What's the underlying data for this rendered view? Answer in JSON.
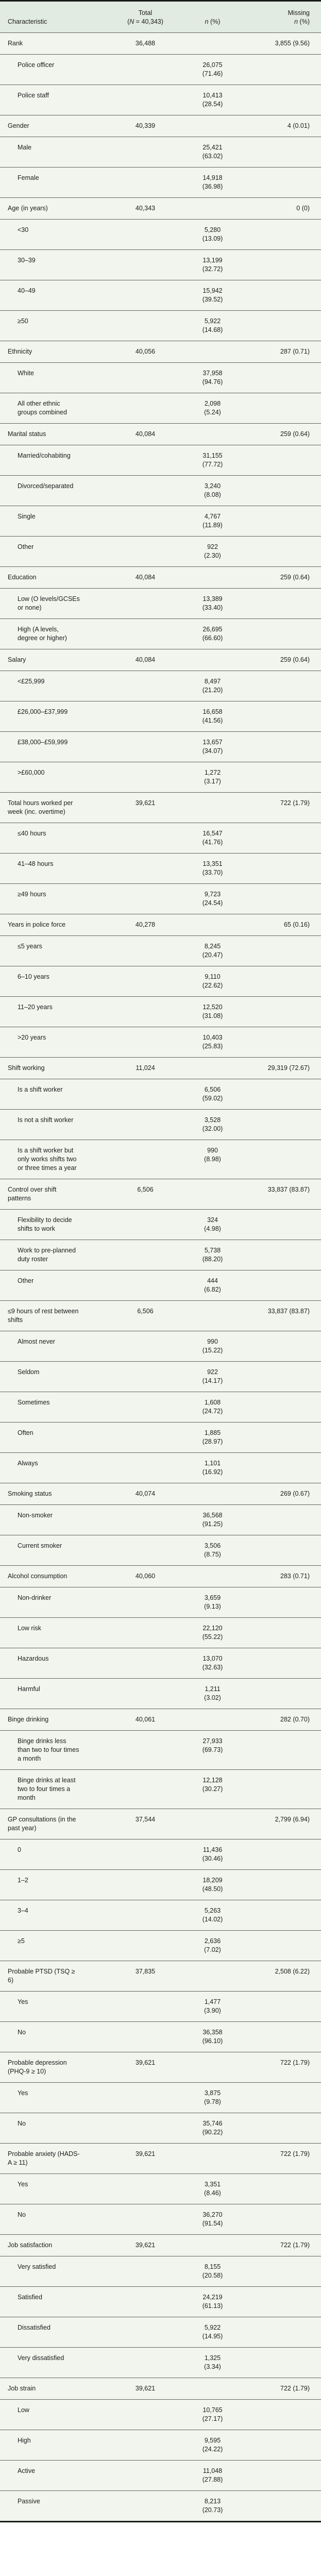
{
  "table": {
    "colors": {
      "header_bg": "#e2ebe1",
      "body_bg": "#f2f5ee",
      "row_line": "#60655f",
      "outer_border": "#181c18",
      "text": "#1b1b1b"
    },
    "header": {
      "characteristic": "Characteristic",
      "total": {
        "line1": "Total",
        "open": "(",
        "n_symbol": "N",
        "rest": " = 40,343)"
      },
      "n_col": {
        "n_symbol": "n",
        "rest": " (%)"
      },
      "missing": {
        "line1": "Missing",
        "n_symbol": "n",
        "rest": " (%)"
      }
    },
    "rows": [
      {
        "label": "Rank",
        "level": 0,
        "total": "36,488",
        "missing": "3,855 (9.56)"
      },
      {
        "label": "Police officer",
        "level": 1,
        "n": "26,075",
        "pct": "(71.46)"
      },
      {
        "label": "Police staff",
        "level": 1,
        "n": "10,413",
        "pct": "(28.54)"
      },
      {
        "label": "Gender",
        "level": 0,
        "total": "40,339",
        "missing": "4 (0.01)"
      },
      {
        "label": "Male",
        "level": 1,
        "n": "25,421",
        "pct": "(63.02)"
      },
      {
        "label": "Female",
        "level": 1,
        "n": "14,918",
        "pct": "(36.98)"
      },
      {
        "label": "Age (in years)",
        "level": 0,
        "total": "40,343",
        "missing": "0 (0)"
      },
      {
        "label": "<30",
        "level": 1,
        "n": "5,280",
        "pct": "(13.09)"
      },
      {
        "label": "30–39",
        "level": 1,
        "n": "13,199",
        "pct": "(32.72)"
      },
      {
        "label": "40–49",
        "level": 1,
        "n": "15,942",
        "pct": "(39.52)"
      },
      {
        "label": "≥50",
        "level": 1,
        "n": "5,922",
        "pct": "(14.68)"
      },
      {
        "label": "Ethnicity",
        "level": 0,
        "total": "40,056",
        "missing": "287 (0.71)"
      },
      {
        "label": "White",
        "level": 1,
        "n": "37,958",
        "pct": "(94.76)"
      },
      {
        "label": "All other ethnic groups combined",
        "level": 1,
        "n": "2,098",
        "pct": "(5.24)"
      },
      {
        "label": "Marital status",
        "level": 0,
        "total": "40,084",
        "missing": "259 (0.64)"
      },
      {
        "label": "Married/cohabiting",
        "level": 1,
        "n": "31,155",
        "pct": "(77.72)"
      },
      {
        "label": "Divorced/separated",
        "level": 1,
        "n": "3,240",
        "pct": "(8.08)"
      },
      {
        "label": "Single",
        "level": 1,
        "n": "4,767",
        "pct": "(11.89)"
      },
      {
        "label": "Other",
        "level": 1,
        "n": "922",
        "pct": "(2.30)"
      },
      {
        "label": "Education",
        "level": 0,
        "total": "40,084",
        "missing": "259 (0.64)"
      },
      {
        "label": "Low (O levels/GCSEs or none)",
        "level": 1,
        "n": "13,389",
        "pct": "(33.40)"
      },
      {
        "label": "High (A levels, degree or higher)",
        "level": 1,
        "n": "26,695",
        "pct": "(66.60)"
      },
      {
        "label": "Salary",
        "level": 0,
        "total": "40,084",
        "missing": "259 (0.64)"
      },
      {
        "label": "<£25,999",
        "level": 1,
        "n": "8,497",
        "pct": "(21.20)"
      },
      {
        "label": "£26,000–£37,999",
        "level": 1,
        "n": "16,658",
        "pct": "(41.56)"
      },
      {
        "label": "£38,000–£59,999",
        "level": 1,
        "n": "13,657",
        "pct": "(34.07)"
      },
      {
        "label": ">£60,000",
        "level": 1,
        "n": "1,272",
        "pct": "(3.17)"
      },
      {
        "label": "Total hours worked per week (inc. overtime)",
        "level": 0,
        "total": "39,621",
        "missing": "722 (1.79)"
      },
      {
        "label": "≤40 hours",
        "level": 1,
        "n": "16,547",
        "pct": "(41.76)"
      },
      {
        "label": "41–48 hours",
        "level": 1,
        "n": "13,351",
        "pct": "(33.70)"
      },
      {
        "label": "≥49 hours",
        "level": 1,
        "n": "9,723",
        "pct": "(24.54)"
      },
      {
        "label": "Years in police force",
        "level": 0,
        "total": "40,278",
        "missing": "65 (0.16)"
      },
      {
        "label": "≤5 years",
        "level": 1,
        "n": "8,245",
        "pct": "(20.47)"
      },
      {
        "label": "6–10 years",
        "level": 1,
        "n": "9,110",
        "pct": "(22.62)"
      },
      {
        "label": "11–20 years",
        "level": 1,
        "n": "12,520",
        "pct": "(31.08)"
      },
      {
        "label": ">20 years",
        "level": 1,
        "n": "10,403",
        "pct": "(25.83)"
      },
      {
        "label": "Shift working",
        "level": 0,
        "total": "11,024",
        "missing": "29,319 (72.67)"
      },
      {
        "label": "Is a shift worker",
        "level": 1,
        "n": "6,506",
        "pct": "(59.02)"
      },
      {
        "label": "Is not a shift worker",
        "level": 1,
        "n": "3,528",
        "pct": "(32.00)"
      },
      {
        "label": "Is a shift worker but only works shifts two or three times a year",
        "level": 1,
        "n": "990",
        "pct": "(8.98)"
      },
      {
        "label": "Control over shift patterns",
        "level": 0,
        "total": "6,506",
        "missing": "33,837 (83.87)"
      },
      {
        "label": "Flexibility to decide shifts to work",
        "level": 1,
        "n": "324",
        "pct": "(4.98)"
      },
      {
        "label": "Work to pre-planned duty roster",
        "level": 1,
        "n": "5,738",
        "pct": "(88.20)"
      },
      {
        "label": "Other",
        "level": 1,
        "n": "444",
        "pct": "(6.82)"
      },
      {
        "label": "≤9 hours of rest between shifts",
        "level": 0,
        "total": "6,506",
        "missing": "33,837 (83.87)"
      },
      {
        "label": "Almost never",
        "level": 1,
        "n": "990",
        "pct": "(15.22)"
      },
      {
        "label": "Seldom",
        "level": 1,
        "n": "922",
        "pct": "(14.17)"
      },
      {
        "label": "Sometimes",
        "level": 1,
        "n": "1,608",
        "pct": "(24.72)"
      },
      {
        "label": "Often",
        "level": 1,
        "n": "1,885",
        "pct": "(28.97)"
      },
      {
        "label": "Always",
        "level": 1,
        "n": "1,101",
        "pct": "(16.92)"
      },
      {
        "label": "Smoking status",
        "level": 0,
        "total": "40,074",
        "missing": "269 (0.67)"
      },
      {
        "label": "Non-smoker",
        "level": 1,
        "n": "36,568",
        "pct": "(91.25)"
      },
      {
        "label": "Current smoker",
        "level": 1,
        "n": "3,506",
        "pct": "(8.75)"
      },
      {
        "label": "Alcohol consumption",
        "level": 0,
        "total": "40,060",
        "missing": "283 (0.71)"
      },
      {
        "label": "Non-drinker",
        "level": 1,
        "n": "3,659",
        "pct": "(9.13)"
      },
      {
        "label": "Low risk",
        "level": 1,
        "n": "22,120",
        "pct": "(55.22)"
      },
      {
        "label": "Hazardous",
        "level": 1,
        "n": "13,070",
        "pct": "(32.63)"
      },
      {
        "label": "Harmful",
        "level": 1,
        "n": "1,211",
        "pct": "(3.02)"
      },
      {
        "label": "Binge drinking",
        "level": 0,
        "total": "40,061",
        "missing": "282 (0.70)"
      },
      {
        "label": "Binge drinks less than two to four times a month",
        "level": 1,
        "n": "27,933",
        "pct": "(69.73)"
      },
      {
        "label": "Binge drinks at least two to four times a month",
        "level": 1,
        "n": "12,128",
        "pct": "(30.27)"
      },
      {
        "label": "GP consultations (in the past year)",
        "level": 0,
        "total": "37,544",
        "missing": "2,799 (6.94)"
      },
      {
        "label": "0",
        "level": 1,
        "n": "11,436",
        "pct": "(30.46)"
      },
      {
        "label": "1–2",
        "level": 1,
        "n": "18,209",
        "pct": "(48.50)"
      },
      {
        "label": "3–4",
        "level": 1,
        "n": "5,263",
        "pct": "(14.02)"
      },
      {
        "label": "≥5",
        "level": 1,
        "n": "2,636",
        "pct": "(7.02)"
      },
      {
        "label": "Probable PTSD (TSQ ≥ 6)",
        "level": 0,
        "total": "37,835",
        "missing": "2,508 (6.22)"
      },
      {
        "label": "Yes",
        "level": 1,
        "n": "1,477",
        "pct": "(3.90)"
      },
      {
        "label": "No",
        "level": 1,
        "n": "36,358",
        "pct": "(96.10)"
      },
      {
        "label": "Probable depression (PHQ-9 ≥ 10)",
        "level": 0,
        "total": "39,621",
        "missing": "722 (1.79)"
      },
      {
        "label": "Yes",
        "level": 1,
        "n": "3,875",
        "pct": "(9.78)"
      },
      {
        "label": "No",
        "level": 1,
        "n": "35,746",
        "pct": "(90.22)"
      },
      {
        "label": "Probable anxiety (HADS-A ≥ 11)",
        "level": 0,
        "total": "39,621",
        "missing": "722 (1.79)"
      },
      {
        "label": "Yes",
        "level": 1,
        "n": "3,351",
        "pct": "(8.46)"
      },
      {
        "label": "No",
        "level": 1,
        "n": "36,270",
        "pct": "(91.54)"
      },
      {
        "label": "Job satisfaction",
        "level": 0,
        "total": "39,621",
        "missing": "722 (1.79)"
      },
      {
        "label": "Very satisfied",
        "level": 1,
        "n": "8,155",
        "pct": "(20.58)"
      },
      {
        "label": "Satisfied",
        "level": 1,
        "n": "24,219",
        "pct": "(61.13)"
      },
      {
        "label": "Dissatisfied",
        "level": 1,
        "n": "5,922",
        "pct": "(14.95)"
      },
      {
        "label": "Very dissatisfied",
        "level": 1,
        "n": "1,325",
        "pct": "(3.34)"
      },
      {
        "label": "Job strain",
        "level": 0,
        "total": "39,621",
        "missing": "722 (1.79)"
      },
      {
        "label": "Low",
        "level": 1,
        "n": "10,765",
        "pct": "(27.17)"
      },
      {
        "label": "High",
        "level": 1,
        "n": "9,595",
        "pct": "(24.22)"
      },
      {
        "label": "Active",
        "level": 1,
        "n": "11,048",
        "pct": "(27.88)"
      },
      {
        "label": "Passive",
        "level": 1,
        "n": "8,213",
        "pct": "(20.73)"
      }
    ]
  }
}
